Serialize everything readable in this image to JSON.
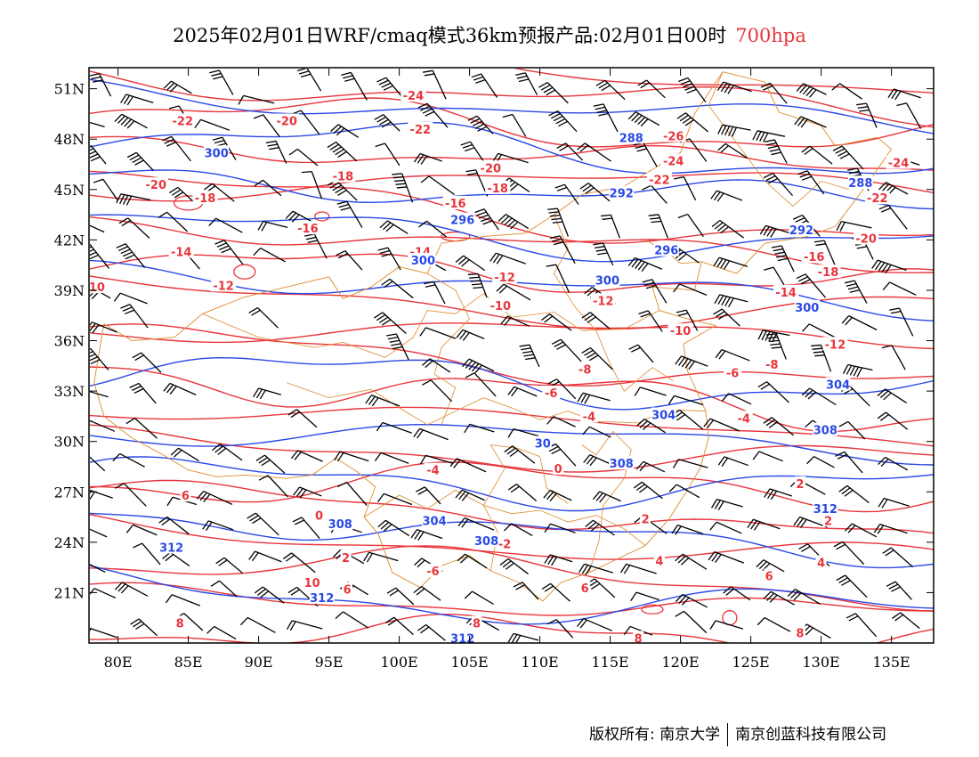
{
  "title": {
    "text": "2025年02月01日WRF/cmaq模式36km预报产品:02月01日00时",
    "level": "700hpa"
  },
  "axes": {
    "lon_ticks": [
      "80E",
      "85E",
      "90E",
      "95E",
      "100E",
      "105E",
      "110E",
      "115E",
      "120E",
      "125E",
      "130E",
      "135E"
    ],
    "lat_ticks": [
      "51N",
      "48N",
      "45N",
      "42N",
      "39N",
      "36N",
      "33N",
      "30N",
      "27N",
      "24N",
      "21N"
    ]
  },
  "colors": {
    "temperature": "#e8353c",
    "height": "#2a48e6",
    "border": "#e08a2a",
    "barb": "#000000"
  },
  "temperature_labels": [
    {
      "text": "-24",
      "lon": 101,
      "lat": 50.6
    },
    {
      "text": "-22",
      "lon": 84.6,
      "lat": 49.1
    },
    {
      "text": "-20",
      "lon": 92,
      "lat": 49.1
    },
    {
      "text": "-22",
      "lon": 101.5,
      "lat": 48.6
    },
    {
      "text": "-26",
      "lon": 119.5,
      "lat": 48.2
    },
    {
      "text": "-24",
      "lon": 119.5,
      "lat": 46.7
    },
    {
      "text": "-24",
      "lon": 135.5,
      "lat": 46.6
    },
    {
      "text": "-20",
      "lon": 106.5,
      "lat": 46.3
    },
    {
      "text": "-22",
      "lon": 118.5,
      "lat": 45.6
    },
    {
      "text": "-20",
      "lon": 82.7,
      "lat": 45.3
    },
    {
      "text": "-18",
      "lon": 96,
      "lat": 45.8
    },
    {
      "text": "-18",
      "lon": 107,
      "lat": 45.1
    },
    {
      "text": "-22",
      "lon": 134,
      "lat": 44.5
    },
    {
      "text": "-18",
      "lon": 86.2,
      "lat": 44.5
    },
    {
      "text": "-16",
      "lon": 104,
      "lat": 44.2
    },
    {
      "text": "-16",
      "lon": 93.5,
      "lat": 42.7
    },
    {
      "text": "-20",
      "lon": 133.2,
      "lat": 42.1
    },
    {
      "text": "-14",
      "lon": 84.5,
      "lat": 41.3
    },
    {
      "text": "-14",
      "lon": 101.5,
      "lat": 41.3
    },
    {
      "text": "-16",
      "lon": 129.5,
      "lat": 41.0
    },
    {
      "text": "-18",
      "lon": 130.5,
      "lat": 40.1
    },
    {
      "text": "-12",
      "lon": 107.5,
      "lat": 39.8
    },
    {
      "text": "-12",
      "lon": 87.5,
      "lat": 39.3
    },
    {
      "text": "10",
      "lon": 78.5,
      "lat": 39.2
    },
    {
      "text": "-14",
      "lon": 127.5,
      "lat": 38.9
    },
    {
      "text": "-12",
      "lon": 114.5,
      "lat": 38.4
    },
    {
      "text": "-10",
      "lon": 107.2,
      "lat": 38.1
    },
    {
      "text": "-10",
      "lon": 120,
      "lat": 36.6
    },
    {
      "text": "-12",
      "lon": 131,
      "lat": 35.8
    },
    {
      "text": "-8",
      "lon": 126.5,
      "lat": 34.6
    },
    {
      "text": "-8",
      "lon": 113.2,
      "lat": 34.3
    },
    {
      "text": "-6",
      "lon": 123.7,
      "lat": 34.1
    },
    {
      "text": "-6",
      "lon": 110.8,
      "lat": 32.9
    },
    {
      "text": "-4",
      "lon": 113.5,
      "lat": 31.5
    },
    {
      "text": "-4",
      "lon": 124.5,
      "lat": 31.4
    },
    {
      "text": "-4",
      "lon": 102.4,
      "lat": 28.3
    },
    {
      "text": "0",
      "lon": 111.3,
      "lat": 28.4
    },
    {
      "text": "6",
      "lon": 84.8,
      "lat": 26.8
    },
    {
      "text": "0",
      "lon": 94.3,
      "lat": 25.6
    },
    {
      "text": "2",
      "lon": 128.5,
      "lat": 27.5
    },
    {
      "text": "2",
      "lon": 130.5,
      "lat": 25.3
    },
    {
      "text": "2",
      "lon": 117.5,
      "lat": 25.4
    },
    {
      "text": "-2",
      "lon": 107.5,
      "lat": 23.9
    },
    {
      "text": "2",
      "lon": 96.2,
      "lat": 23.1
    },
    {
      "text": "-6",
      "lon": 102.4,
      "lat": 22.3
    },
    {
      "text": "4",
      "lon": 118.5,
      "lat": 22.9
    },
    {
      "text": "4",
      "lon": 130,
      "lat": 22.8
    },
    {
      "text": "6",
      "lon": 126.3,
      "lat": 22.0
    },
    {
      "text": "10",
      "lon": 93.8,
      "lat": 21.6
    },
    {
      "text": "6",
      "lon": 96.3,
      "lat": 21.2
    },
    {
      "text": "6",
      "lon": 113.2,
      "lat": 21.3
    },
    {
      "text": "8",
      "lon": 84.4,
      "lat": 19.2
    },
    {
      "text": "8",
      "lon": 105.5,
      "lat": 19.2
    },
    {
      "text": "8",
      "lon": 117,
      "lat": 18.3
    },
    {
      "text": "8",
      "lon": 128.5,
      "lat": 18.6
    }
  ],
  "height_labels": [
    {
      "text": "300",
      "lon": 87,
      "lat": 47.2
    },
    {
      "text": "288",
      "lon": 116.5,
      "lat": 48.1
    },
    {
      "text": "288",
      "lon": 132.8,
      "lat": 45.4
    },
    {
      "text": "292",
      "lon": 115.8,
      "lat": 44.8
    },
    {
      "text": "296",
      "lon": 104.5,
      "lat": 43.2
    },
    {
      "text": "292",
      "lon": 128.6,
      "lat": 42.6
    },
    {
      "text": "296",
      "lon": 119,
      "lat": 41.4
    },
    {
      "text": "300",
      "lon": 101.7,
      "lat": 40.8
    },
    {
      "text": "300",
      "lon": 114.8,
      "lat": 39.6
    },
    {
      "text": "300",
      "lon": 129,
      "lat": 38.0
    },
    {
      "text": "304",
      "lon": 131.2,
      "lat": 33.4
    },
    {
      "text": "304",
      "lon": 118.8,
      "lat": 31.6
    },
    {
      "text": "308",
      "lon": 130.3,
      "lat": 30.7
    },
    {
      "text": "30",
      "lon": 110.2,
      "lat": 29.9
    },
    {
      "text": "308",
      "lon": 115.8,
      "lat": 28.7
    },
    {
      "text": "312",
      "lon": 130.3,
      "lat": 26.0
    },
    {
      "text": "308",
      "lon": 95.8,
      "lat": 25.1
    },
    {
      "text": "304",
      "lon": 102.5,
      "lat": 25.3
    },
    {
      "text": "308",
      "lon": 106.2,
      "lat": 24.1
    },
    {
      "text": "312",
      "lon": 83.8,
      "lat": 23.7
    },
    {
      "text": "312",
      "lon": 94.5,
      "lat": 20.7
    },
    {
      "text": "312",
      "lon": 104.5,
      "lat": 18.3
    }
  ],
  "footer": {
    "left": "版权所有: 南京大学",
    "right": "南京创蓝科技有限公司"
  }
}
